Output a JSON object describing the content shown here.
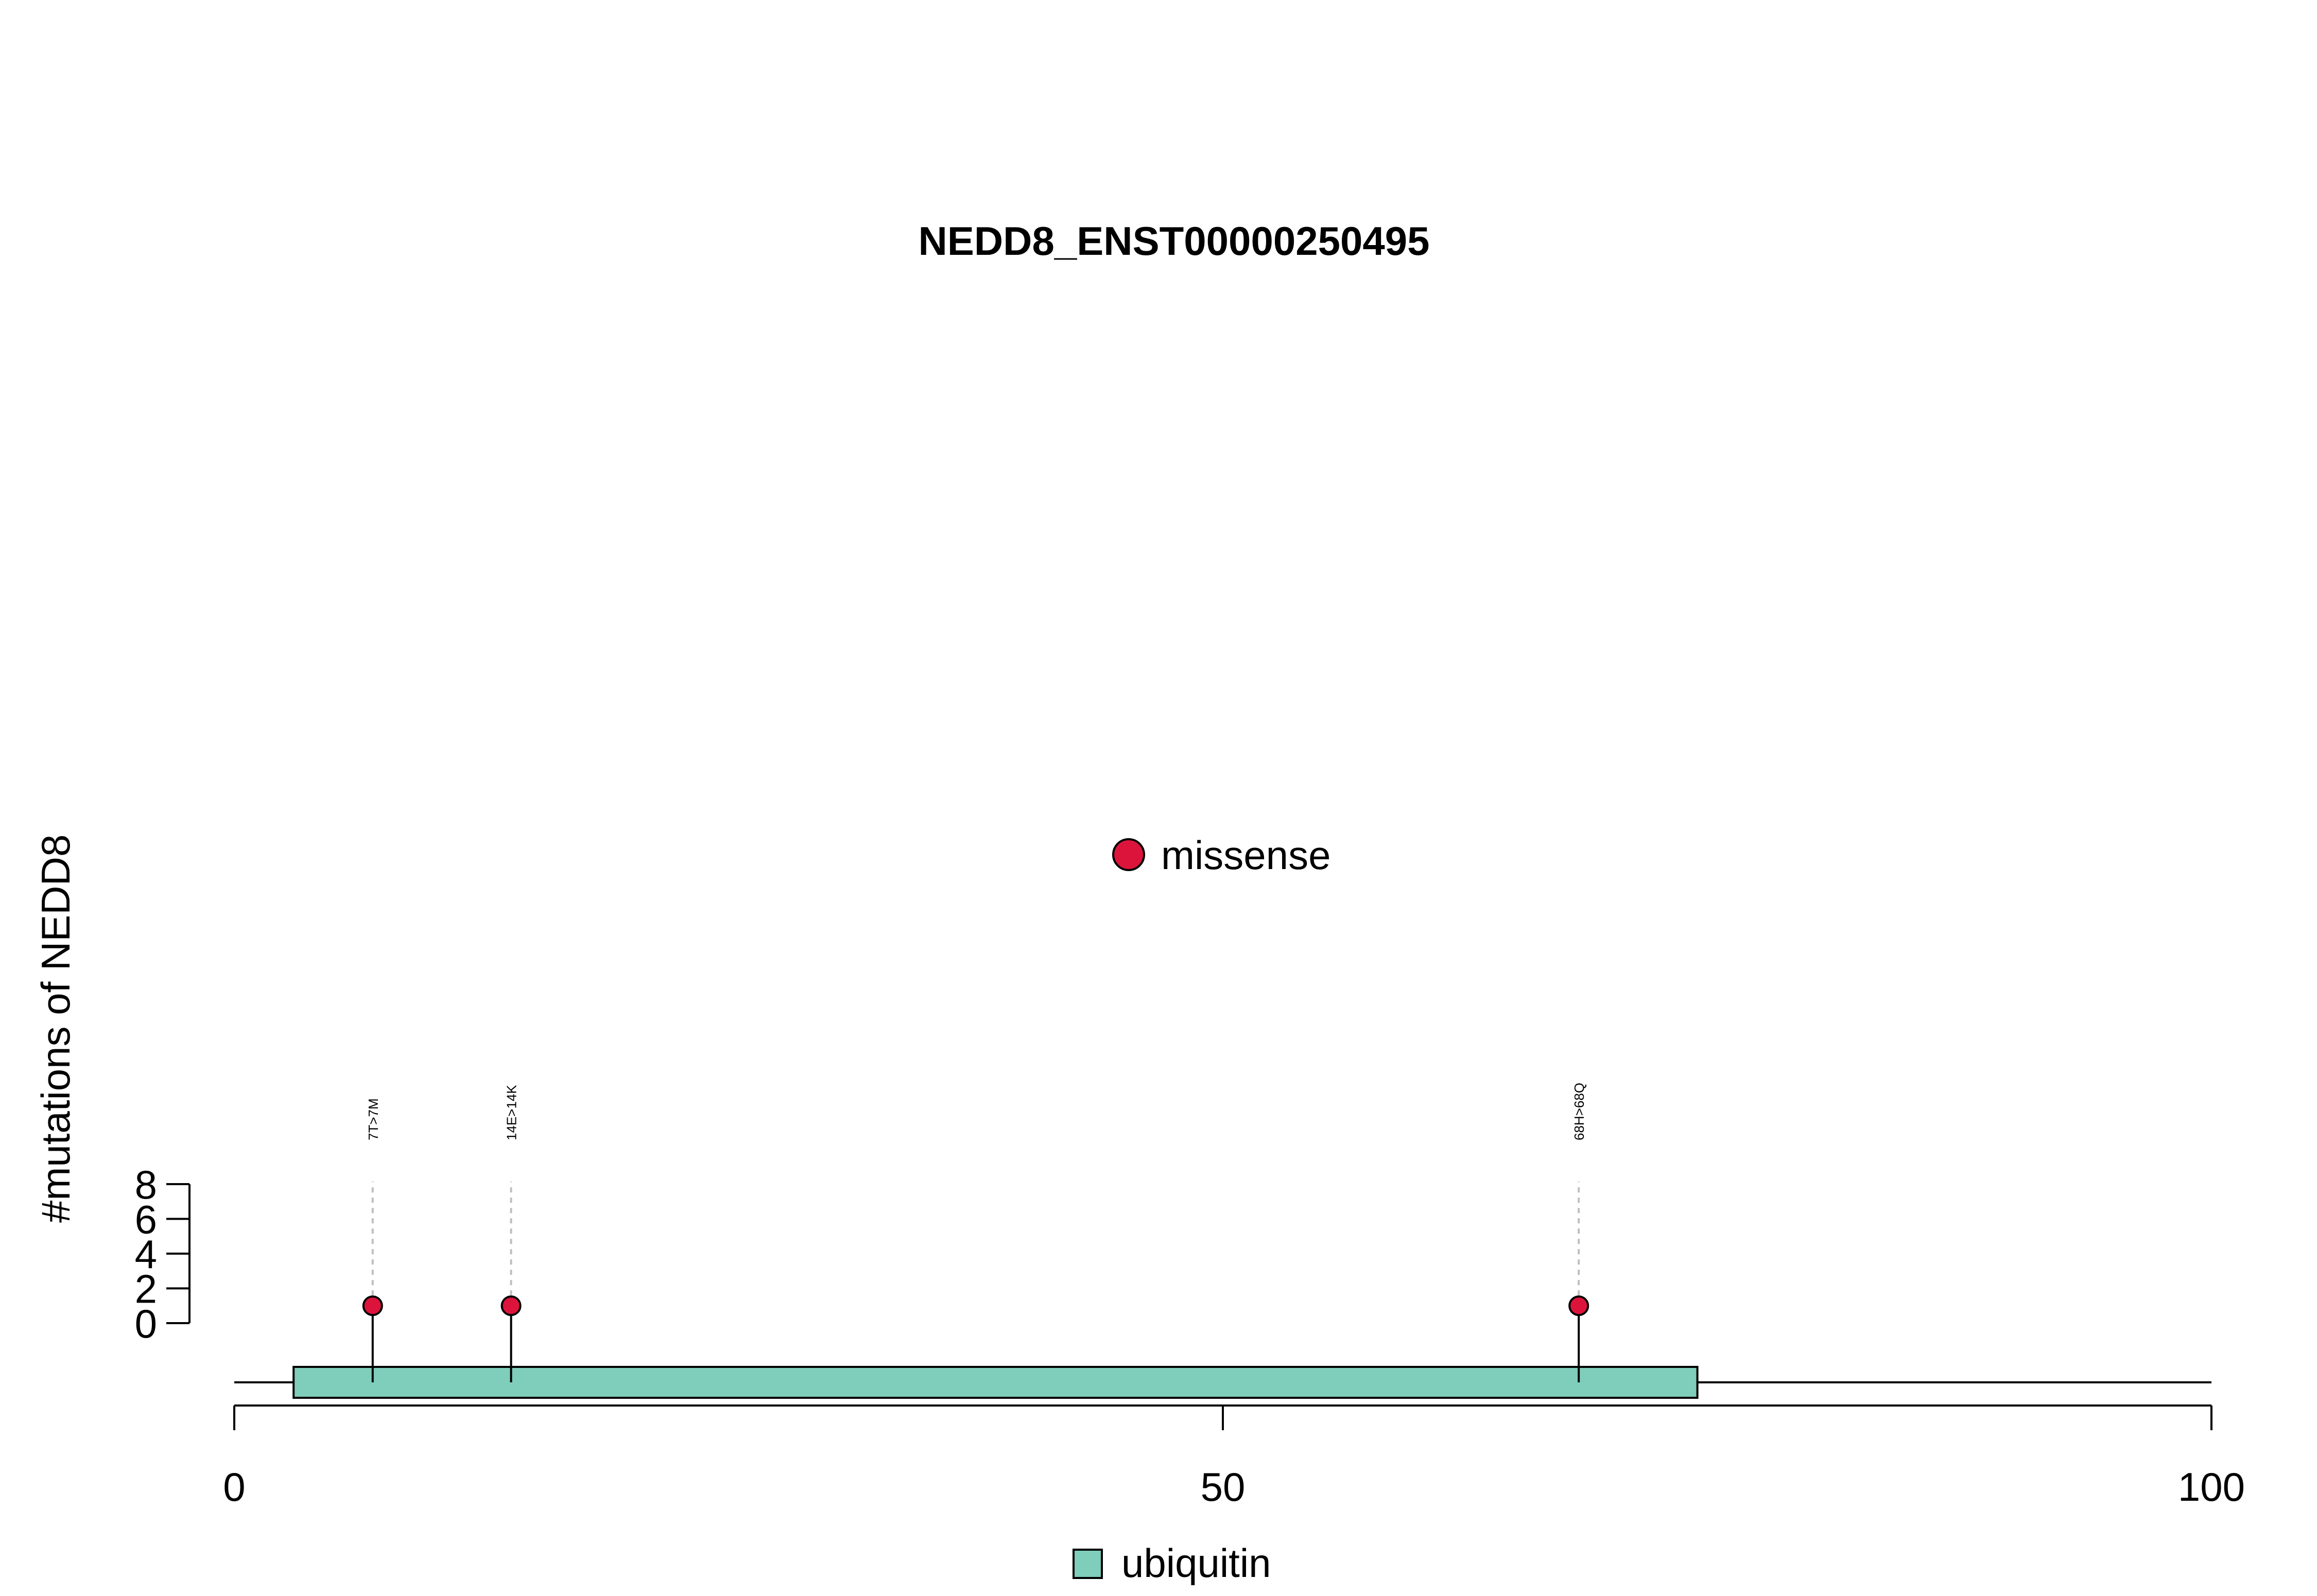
{
  "chart_data": {
    "type": "lollipop",
    "title": "NEDD8_ENST00000250495",
    "ylabel": "#mutations of NEDD8",
    "xlabel": "",
    "xlim": [
      0,
      100
    ],
    "ylim": [
      0,
      8
    ],
    "x_ticks": [
      0,
      50,
      100
    ],
    "y_ticks": [
      0,
      2,
      4,
      6,
      8
    ],
    "protein_length": 100,
    "legend_mutation": {
      "label": "missense",
      "color": "#dc143c"
    },
    "legend_domain": {
      "label": "ubiquitin",
      "color": "#7fcdbb"
    },
    "domains": [
      {
        "name": "ubiquitin",
        "start": 3,
        "end": 74,
        "color": "#7fcdbb"
      }
    ],
    "mutations": [
      {
        "label": "7T>7M",
        "position": 7,
        "count": 1,
        "type": "missense"
      },
      {
        "label": "14E>14K",
        "position": 14,
        "count": 1,
        "type": "missense"
      },
      {
        "label": "68H>68Q",
        "position": 68,
        "count": 1,
        "type": "missense"
      }
    ],
    "grid": false
  }
}
